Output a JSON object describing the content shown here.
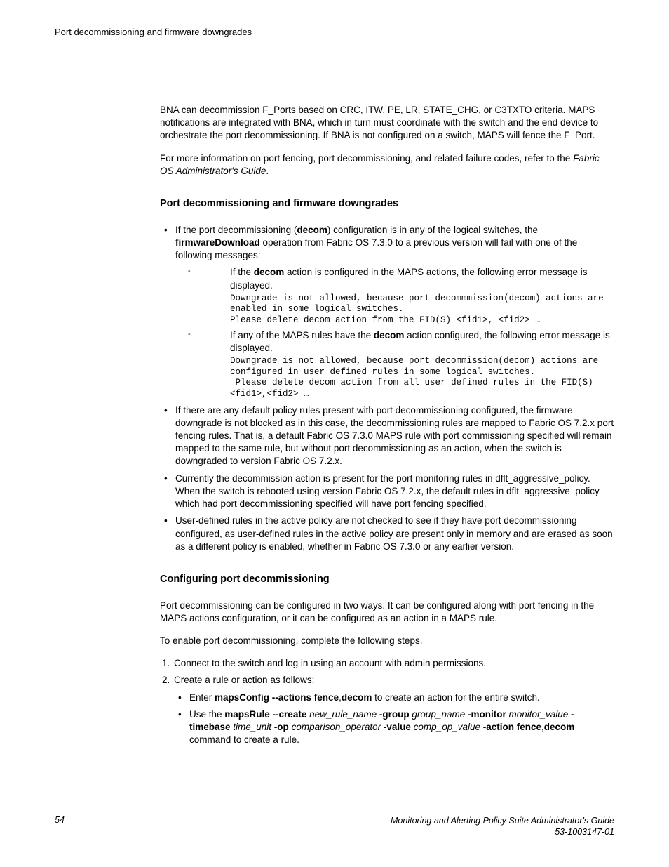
{
  "header": {
    "text": "Port decommissioning and firmware downgrades"
  },
  "intro": {
    "p1": "BNA can decommission F_Ports based on CRC, ITW, PE, LR, STATE_CHG, or C3TXTO criteria. MAPS notifications are integrated with BNA, which in turn must coordinate with the switch and the end device to orchestrate the port decommissioning. If BNA is not configured on a switch, MAPS will fence the F_Port.",
    "p2a": "For more information on port fencing, port decommissioning, and related failure codes, refer to the ",
    "p2b": "Fabric OS Administrator's Guide",
    "p2c": "."
  },
  "s1": {
    "title": "Port decommissioning and firmware downgrades",
    "b1a": "If the port decommissioning (",
    "b1b": "decom",
    "b1c": ") configuration is in any of the logical switches, the ",
    "b1d": "firmwareDownload",
    "b1e": " operation from Fabric OS 7.3.0 to a previous version will fail with one of the following messages:",
    "d1a": "If the ",
    "d1b": "decom",
    "d1c": " action is configured in the MAPS actions, the following error message is displayed.",
    "d1code": "Downgrade is not allowed, because port decommmission(decom) actions are\nenabled in some logical switches.\nPlease delete decom action from the FID(S) <fid1>, <fid2> …",
    "d2a": "If any of the MAPS rules have the ",
    "d2b": "decom",
    "d2c": " action configured, the following error message is displayed.",
    "d2code": "Downgrade is not allowed, because port decommission(decom) actions are\nconfigured in user defined rules in some logical switches.\n Please delete decom action from all user defined rules in the FID(S)\n<fid1>,<fid2> …",
    "b2": "If there are any default policy rules present with port decommissioning configured, the firmware downgrade is not blocked as in this case, the decommissioning rules are mapped to Fabric OS 7.2.x port fencing rules. That is, a default Fabric OS 7.3.0 MAPS rule with port commissioning specified will remain mapped to the same rule, but without port decommissioning as an action, when the switch is downgraded to version Fabric OS 7.2.x.",
    "b3": "Currently the decommission action is present for the port monitoring rules in dflt_aggressive_policy. When the switch is rebooted using version Fabric OS 7.2.x, the default rules in dflt_aggressive_policy which had port decommissioning specified will have port fencing specified.",
    "b4": "User-defined rules in the active policy are not checked to see if they have port decommissioning configured, as user-defined rules in the active policy are present only in memory and are erased as soon as a different policy is enabled, whether in Fabric OS 7.3.0 or any earlier version."
  },
  "s2": {
    "title": "Configuring port decommissioning",
    "p1": "Port decommissioning can be configured in two ways. It can be configured along with port fencing in the MAPS actions configuration, or it can be configured as an action in a MAPS rule.",
    "p2": "To enable port decommissioning, complete the following steps.",
    "step1": "Connect to the switch and log in using an account with admin permissions.",
    "step2": "Create a rule or action as follows:",
    "i1a": "Enter ",
    "i1b": "mapsConfig --actions fence",
    "i1c": ",",
    "i1d": "decom",
    "i1e": " to create an action for the entire switch.",
    "i2a": "Use the ",
    "i2b": "mapsRule --create",
    "i2c": " new_rule_name ",
    "i2d": "-group",
    "i2e": " group_name ",
    "i2f": "-monitor",
    "i2g": " monitor_value ",
    "i2h": "-timebase",
    "i2i": " time_unit ",
    "i2j": "-op",
    "i2k": " comparison_operator ",
    "i2l": "-value",
    "i2m": " comp_op_value ",
    "i2n": "-action fence",
    "i2o": ",",
    "i2p": "decom",
    "i2q": " command to create a rule."
  },
  "footer": {
    "page": "54",
    "title": "Monitoring and Alerting Policy Suite Administrator's Guide",
    "docnum": "53-1003147-01"
  }
}
